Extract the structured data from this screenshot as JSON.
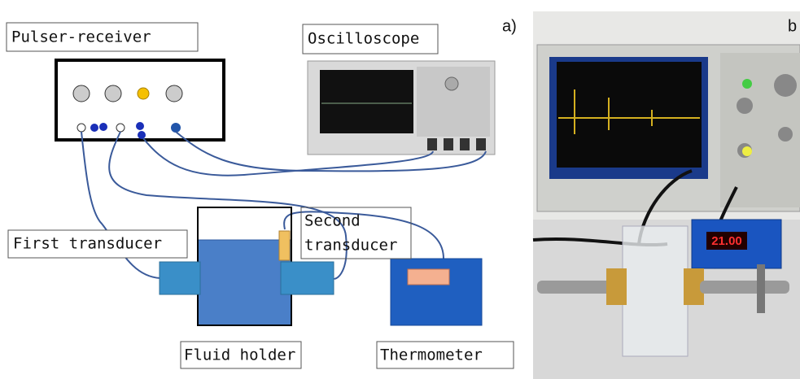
{
  "panels": {
    "a_label": "a)",
    "b_label": "b"
  },
  "labels": {
    "pulser_receiver": "Pulser-receiver",
    "oscilloscope": "Oscilloscope",
    "first_transducer": "First transducer",
    "second_transducer": [
      "Second",
      "transducer"
    ],
    "fluid_holder": "Fluid holder",
    "thermometer": "Thermometer"
  },
  "photo": {
    "display": "21.00"
  }
}
